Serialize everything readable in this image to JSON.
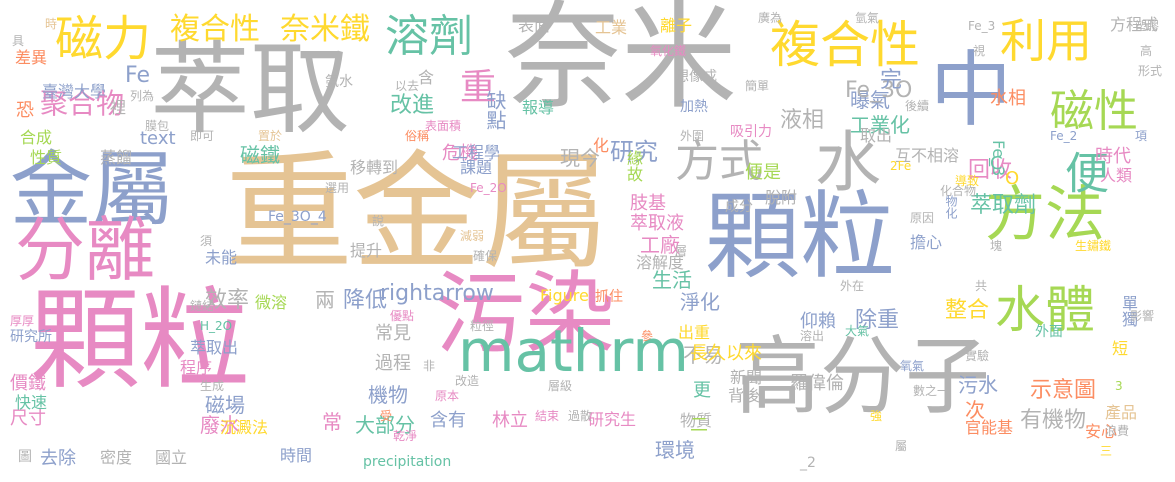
{
  "palette": {
    "gray": "#b3b3b3",
    "tan": "#e5c494",
    "blue": "#8da0cb",
    "pink": "#e78ac3",
    "green": "#66c2a5",
    "lime": "#a6d854",
    "yellow": "#ffd92f",
    "orange": "#fc8d62"
  },
  "words": [
    {
      "text": "重金屬",
      "color": "tan"
    },
    {
      "text": "顆粒",
      "color": "pink"
    },
    {
      "text": "奈米",
      "color": "gray"
    },
    {
      "text": "萃取",
      "color": "gray"
    },
    {
      "text": "顆粒",
      "color": "blue"
    },
    {
      "text": "高分子",
      "color": "gray"
    },
    {
      "text": "污染",
      "color": "pink"
    },
    {
      "text": "金屬",
      "color": "blue"
    },
    {
      "text": "中",
      "color": "blue"
    },
    {
      "text": "分離",
      "color": "pink"
    },
    {
      "text": "方法",
      "color": "lime"
    },
    {
      "text": "mathrm",
      "color": "green"
    },
    {
      "text": "水",
      "color": "gray"
    },
    {
      "text": "水體",
      "color": "lime"
    },
    {
      "text": "複合性",
      "color": "yellow"
    },
    {
      "text": "磁力",
      "color": "yellow"
    },
    {
      "text": "利用",
      "color": "yellow"
    },
    {
      "text": "方式",
      "color": "gray"
    },
    {
      "text": "磁性",
      "color": "lime"
    },
    {
      "text": "溶劑",
      "color": "green"
    },
    {
      "text": "便",
      "color": "green"
    },
    {
      "text": "複合性",
      "color": "yellow"
    },
    {
      "text": "奈米鐵",
      "color": "yellow"
    },
    {
      "text": "聚合物",
      "color": "pink"
    },
    {
      "text": "重",
      "color": "pink"
    },
    {
      "text": "Fe",
      "color": "blue"
    },
    {
      "text": "研究",
      "color": "blue"
    },
    {
      "text": "回收",
      "color": "pink"
    },
    {
      "text": "萃取劑",
      "color": "green"
    },
    {
      "text": "曝氣",
      "color": "blue"
    },
    {
      "text": "液相",
      "color": "gray"
    },
    {
      "text": "工業化",
      "color": "green"
    },
    {
      "text": "改進",
      "color": "green"
    },
    {
      "text": "缺點",
      "color": "blue"
    },
    {
      "text": "Fe_3O",
      "color": "gray"
    },
    {
      "text": "降低",
      "color": "blue"
    },
    {
      "text": "rightarrow",
      "color": "blue"
    },
    {
      "text": "水相",
      "color": "orange"
    },
    {
      "text": "效率",
      "color": "gray"
    },
    {
      "text": "磁鐵",
      "color": "green"
    },
    {
      "text": "危機",
      "color": "pink"
    },
    {
      "text": "臺灣大學",
      "color": "blue"
    },
    {
      "text": "Fe_3",
      "color": "green"
    },
    {
      "text": "工程學",
      "color": "blue"
    },
    {
      "text": "課題",
      "color": "blue"
    },
    {
      "text": "現今",
      "color": "gray"
    },
    {
      "text": "報導",
      "color": "green"
    },
    {
      "text": "工廠",
      "color": "pink"
    },
    {
      "text": "生活",
      "color": "green"
    },
    {
      "text": "淨化",
      "color": "blue"
    },
    {
      "text": "不易",
      "color": "gray"
    },
    {
      "text": "整合",
      "color": "yellow"
    },
    {
      "text": "除重",
      "color": "blue"
    },
    {
      "text": "仰賴",
      "color": "blue"
    },
    {
      "text": "長久以來",
      "color": "yellow"
    },
    {
      "text": "示意圖",
      "color": "orange"
    },
    {
      "text": "有機物",
      "color": "gray"
    },
    {
      "text": "污水",
      "color": "blue"
    },
    {
      "text": "次",
      "color": "orange"
    },
    {
      "text": "官能基",
      "color": "orange"
    },
    {
      "text": "安心",
      "color": "orange"
    },
    {
      "text": "產品",
      "color": "tan"
    },
    {
      "text": "短",
      "color": "yellow"
    },
    {
      "text": "單獨",
      "color": "blue"
    },
    {
      "text": "外面",
      "color": "green"
    },
    {
      "text": "擔心",
      "color": "blue"
    },
    {
      "text": "肢基",
      "color": "pink"
    },
    {
      "text": "萃取液",
      "color": "pink"
    },
    {
      "text": "緣故",
      "color": "lime"
    },
    {
      "text": "便是",
      "color": "lime"
    },
    {
      "text": "互不相溶",
      "color": "gray"
    },
    {
      "text": "取出",
      "color": "gray"
    },
    {
      "text": "時代",
      "color": "pink"
    },
    {
      "text": "人類",
      "color": "pink"
    },
    {
      "text": "脫附",
      "color": "gray"
    },
    {
      "text": "成分",
      "color": "gray"
    },
    {
      "text": "溶解度",
      "color": "gray"
    },
    {
      "text": "抓住",
      "color": "orange"
    },
    {
      "text": "出重",
      "color": "yellow"
    },
    {
      "text": "大部分",
      "color": "green"
    },
    {
      "text": "機物",
      "color": "blue"
    },
    {
      "text": "過程",
      "color": "gray"
    },
    {
      "text": "常見",
      "color": "gray"
    },
    {
      "text": "兩",
      "color": "gray"
    },
    {
      "text": "磁場",
      "color": "blue"
    },
    {
      "text": "廢水",
      "color": "pink"
    },
    {
      "text": "去除",
      "color": "blue"
    },
    {
      "text": "密度",
      "color": "gray"
    },
    {
      "text": "尺寸",
      "color": "pink"
    },
    {
      "text": "價鐵",
      "color": "pink"
    },
    {
      "text": "萃取出",
      "color": "blue"
    },
    {
      "text": "程序",
      "color": "pink"
    },
    {
      "text": "沉澱法",
      "color": "yellow"
    },
    {
      "text": "快速",
      "color": "green"
    },
    {
      "text": "時間",
      "color": "blue"
    },
    {
      "text": "常",
      "color": "pink"
    },
    {
      "text": "含有",
      "color": "blue"
    },
    {
      "text": "林立",
      "color": "pink"
    },
    {
      "text": "研究生",
      "color": "pink"
    },
    {
      "text": "物質",
      "color": "gray"
    },
    {
      "text": "環境",
      "color": "blue"
    },
    {
      "text": "二",
      "color": "lime"
    },
    {
      "text": "更",
      "color": "green"
    },
    {
      "text": "背後",
      "color": "gray"
    },
    {
      "text": "新聞",
      "color": "gray"
    },
    {
      "text": "羅偉倫",
      "color": "gray"
    },
    {
      "text": "text",
      "color": "blue"
    },
    {
      "text": "Figure",
      "color": "yellow"
    },
    {
      "text": "蒸餾",
      "color": "gray"
    },
    {
      "text": "性質",
      "color": "lime"
    },
    {
      "text": "合成",
      "color": "lime"
    },
    {
      "text": "恐",
      "color": "orange"
    },
    {
      "text": "差異",
      "color": "orange"
    },
    {
      "text": "移轉到",
      "color": "gray"
    },
    {
      "text": "提升",
      "color": "gray"
    },
    {
      "text": "微溶",
      "color": "lime"
    },
    {
      "text": "未能",
      "color": "blue"
    },
    {
      "text": "研究所",
      "color": "blue"
    },
    {
      "text": "precipitation",
      "color": "green"
    },
    {
      "text": "國立",
      "color": "gray"
    },
    {
      "text": "圖",
      "color": "gray"
    },
    {
      "text": "即可",
      "color": "gray"
    },
    {
      "text": "膜包",
      "color": "gray"
    },
    {
      "text": "列為",
      "color": "gray"
    },
    {
      "text": "裡",
      "color": "gray"
    },
    {
      "text": "表面",
      "color": "gray"
    },
    {
      "text": "工業",
      "color": "tan"
    },
    {
      "text": "離子",
      "color": "yellow"
    },
    {
      "text": "廣為",
      "color": "gray"
    },
    {
      "text": "氧化鐵",
      "color": "pink"
    },
    {
      "text": "想像成",
      "color": "gray"
    },
    {
      "text": "簡單",
      "color": "gray"
    },
    {
      "text": "加熱",
      "color": "blue"
    },
    {
      "text": "吸引力",
      "color": "pink"
    },
    {
      "text": "外圍",
      "color": "gray"
    },
    {
      "text": "化",
      "color": "orange"
    },
    {
      "text": "俗稱",
      "color": "orange"
    },
    {
      "text": "表面積",
      "color": "pink"
    },
    {
      "text": "氨水",
      "color": "gray"
    },
    {
      "text": "以去",
      "color": "gray"
    },
    {
      "text": "含",
      "color": "gray"
    },
    {
      "text": "時",
      "color": "tan"
    },
    {
      "text": "具",
      "color": "gray"
    },
    {
      "text": "Fe_3O_4",
      "color": "blue"
    },
    {
      "text": "置於",
      "color": "tan"
    },
    {
      "text": "選用",
      "color": "gray"
    },
    {
      "text": "Fe_2O",
      "color": "pink"
    },
    {
      "text": "H_2O",
      "color": "green"
    },
    {
      "text": "優點",
      "color": "pink"
    },
    {
      "text": "生成",
      "color": "gray"
    },
    {
      "text": "粒徑",
      "color": "gray"
    },
    {
      "text": "改造",
      "color": "gray"
    },
    {
      "text": "層級",
      "color": "gray"
    },
    {
      "text": "原本",
      "color": "pink"
    },
    {
      "text": "結束",
      "color": "pink"
    },
    {
      "text": "過散",
      "color": "gray"
    },
    {
      "text": "乾淨",
      "color": "pink"
    },
    {
      "text": "受",
      "color": "orange"
    },
    {
      "text": "非",
      "color": "gray"
    },
    {
      "text": "減弱",
      "color": "tan"
    },
    {
      "text": "確保",
      "color": "gray"
    },
    {
      "text": "層",
      "color": "gray"
    },
    {
      "text": "說",
      "color": "gray"
    },
    {
      "text": "須",
      "color": "gray"
    },
    {
      "text": "厚厚",
      "color": "pink"
    },
    {
      "text": "鏈結",
      "color": "gray"
    },
    {
      "text": "參",
      "color": "orange"
    },
    {
      "text": "完",
      "color": "blue"
    },
    {
      "text": "後續",
      "color": "gray"
    },
    {
      "text": "原因",
      "color": "gray"
    },
    {
      "text": "2Fe",
      "color": "yellow"
    },
    {
      "text": "化合物",
      "color": "gray"
    },
    {
      "text": "導致",
      "color": "yellow"
    },
    {
      "text": "物化",
      "color": "blue"
    },
    {
      "text": "Fe_2",
      "color": "blue"
    },
    {
      "text": "項",
      "color": "blue"
    },
    {
      "text": "形式",
      "color": "gray"
    },
    {
      "text": "方程式",
      "color": "gray"
    },
    {
      "text": "視",
      "color": "gray"
    },
    {
      "text": "Fe_3",
      "color": "gray"
    },
    {
      "text": "氫氣",
      "color": "gray"
    },
    {
      "text": "塑膠",
      "color": "gray"
    },
    {
      "text": "高",
      "color": "gray"
    },
    {
      "text": "塊",
      "color": "gray"
    },
    {
      "text": "生鏽鐵",
      "color": "yellow"
    },
    {
      "text": "共",
      "color": "gray"
    },
    {
      "text": "外在",
      "color": "gray"
    },
    {
      "text": "影響",
      "color": "gray"
    },
    {
      "text": "大氣",
      "color": "green"
    },
    {
      "text": "溶出",
      "color": "gray"
    },
    {
      "text": "實驗",
      "color": "gray"
    },
    {
      "text": "氧氣",
      "color": "blue"
    },
    {
      "text": "數之一",
      "color": "gray"
    },
    {
      "text": "強",
      "color": "yellow"
    },
    {
      "text": "屬",
      "color": "gray"
    },
    {
      "text": "三",
      "color": "yellow"
    },
    {
      "text": "浪費",
      "color": "gray"
    },
    {
      "text": "_2",
      "color": "gray"
    },
    {
      "text": "3",
      "color": "lime"
    },
    {
      "text": "C",
      "color": "green"
    },
    {
      "text": "O",
      "color": "yellow"
    }
  ]
}
